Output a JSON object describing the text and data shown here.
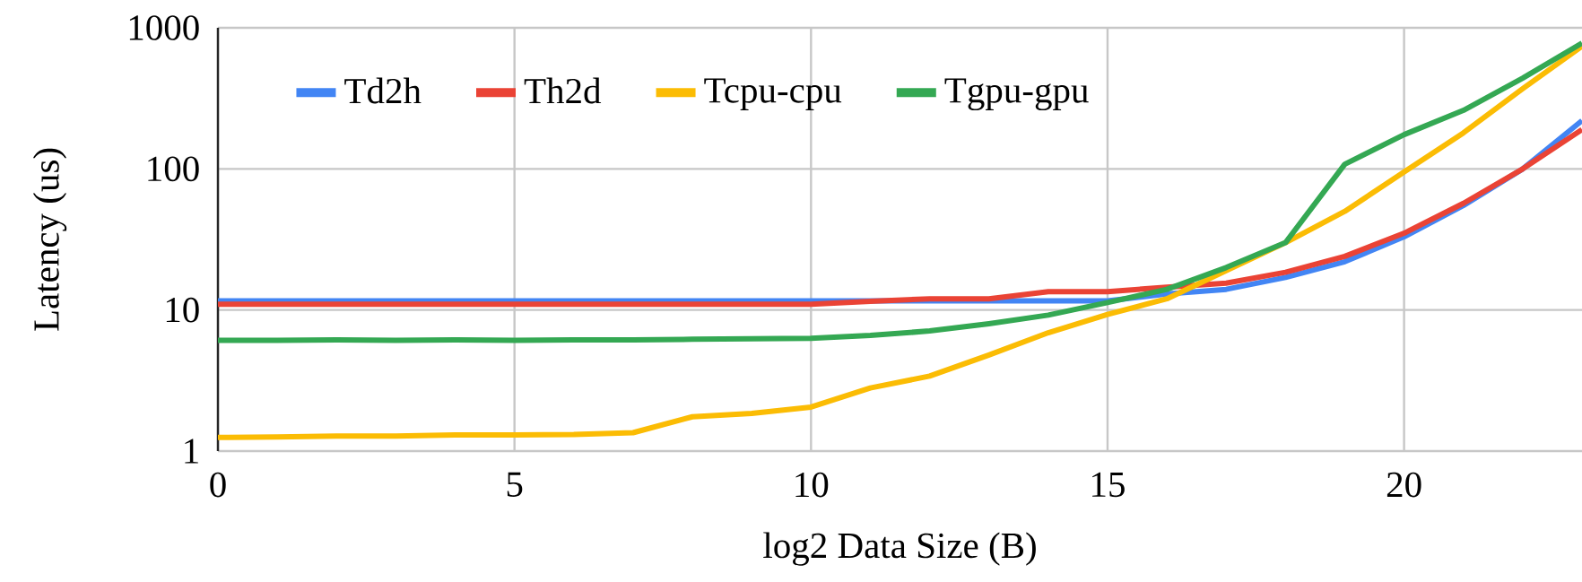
{
  "chart_data": {
    "type": "line",
    "xlabel": "log2 Data Size (B)",
    "ylabel": "Latency (us)",
    "x": [
      0,
      1,
      2,
      3,
      4,
      5,
      6,
      7,
      8,
      9,
      10,
      11,
      12,
      13,
      14,
      15,
      16,
      17,
      18,
      19,
      20,
      21,
      22,
      23
    ],
    "series": [
      {
        "name": "Td2h",
        "color": "#4285f4",
        "values": [
          11.6,
          11.6,
          11.6,
          11.6,
          11.6,
          11.6,
          11.6,
          11.6,
          11.6,
          11.6,
          11.6,
          11.6,
          11.6,
          11.6,
          11.6,
          11.6,
          13,
          14,
          17,
          22,
          33,
          55,
          100,
          220
        ]
      },
      {
        "name": "Th2d",
        "color": "#ea4335",
        "values": [
          11,
          11,
          11,
          11,
          11,
          11,
          11,
          11,
          11,
          11,
          11,
          11.5,
          12,
          12,
          13.5,
          13.5,
          14.5,
          15.5,
          18.5,
          24,
          35,
          57,
          100,
          190
        ]
      },
      {
        "name": "Tcpu-cpu",
        "color": "#fbbc04",
        "values": [
          1.25,
          1.26,
          1.28,
          1.28,
          1.3,
          1.3,
          1.31,
          1.35,
          1.75,
          1.85,
          2.05,
          2.8,
          3.4,
          4.8,
          6.9,
          9.3,
          12,
          19,
          30,
          50,
          95,
          180,
          370,
          740
        ]
      },
      {
        "name": "Tgpu-gpu",
        "color": "#34a853",
        "values": [
          6.1,
          6.1,
          6.15,
          6.1,
          6.15,
          6.1,
          6.15,
          6.15,
          6.2,
          6.25,
          6.3,
          6.6,
          7.1,
          8,
          9.2,
          11.3,
          14,
          20,
          30,
          108,
          175,
          260,
          440,
          780
        ]
      }
    ],
    "xlim": [
      0,
      23
    ],
    "xticks": [
      0,
      5,
      10,
      15,
      20
    ],
    "ylim": [
      1,
      1000
    ],
    "yticks": [
      1,
      10,
      100,
      1000
    ],
    "log": "y",
    "grid": true,
    "legend": "top left",
    "marker": "none",
    "line_style": "solid"
  }
}
